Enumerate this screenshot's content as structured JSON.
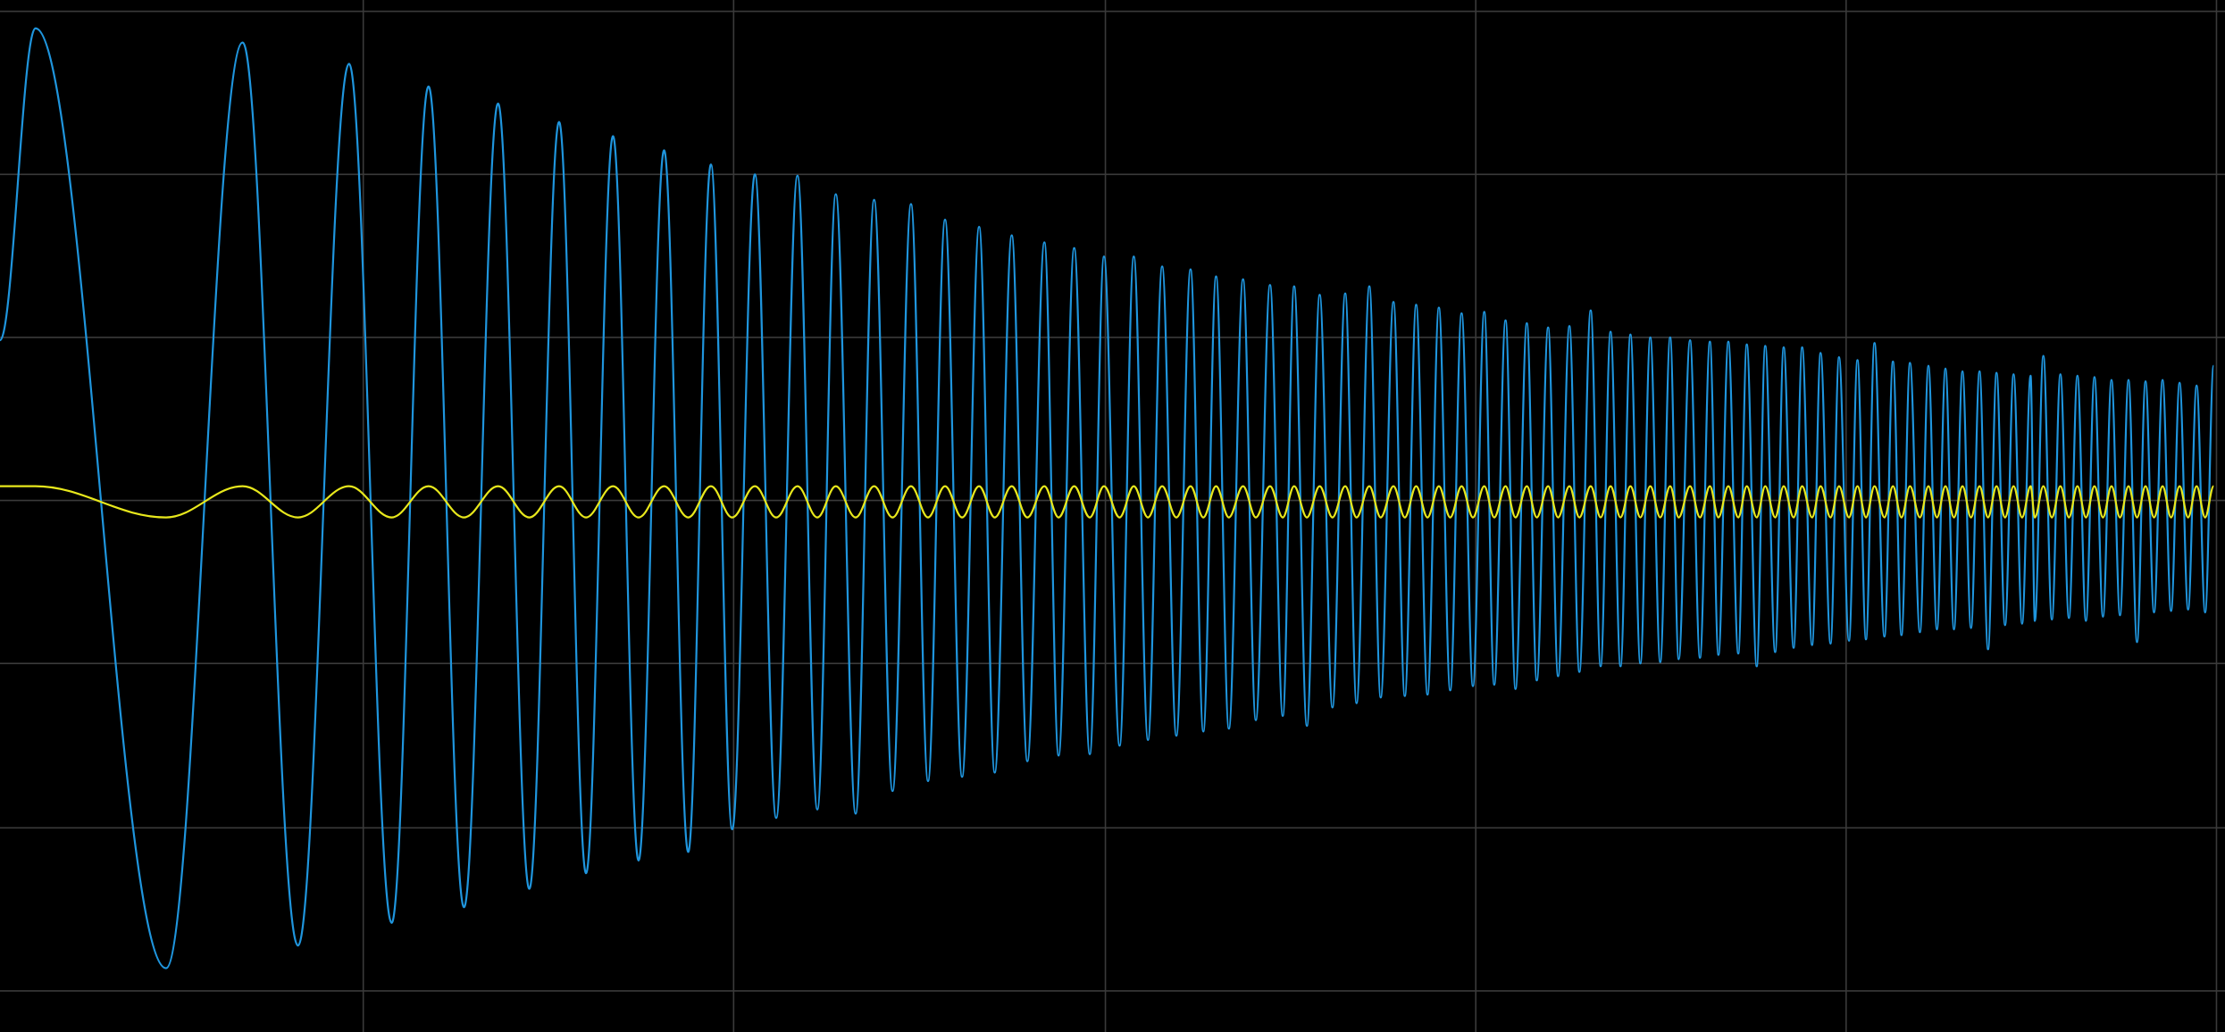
{
  "chart_data": {
    "type": "line",
    "x": [
      0,
      25,
      117,
      171,
      210,
      246,
      276,
      302,
      327,
      351,
      373,
      394,
      413,
      432,
      450,
      468,
      485,
      501,
      516,
      532,
      547,
      562,
      576,
      589,
      603,
      616,
      629,
      642,
      654,
      666,
      678,
      690,
      701,
      713,
      724,
      736,
      746,
      757,
      768,
      778,
      789,
      799,
      809,
      819,
      829,
      839,
      848,
      857,
      866,
      876,
      885,
      895,
      904,
      912,
      921,
      930,
      939,
      948,
      956,
      965,
      973,
      982,
      990,
      998,
      1006,
      1014,
      1022,
      1030,
      1038,
      1046,
      1053,
      1061,
      1068,
      1076,
      1083,
      1091,
      1098,
      1106,
      1113,
      1121,
      1128,
      1135,
      1142,
      1149,
      1156,
      1163,
      1170,
      1177,
      1183,
      1191,
      1198,
      1205,
      1211,
      1218,
      1225,
      1231,
      1238,
      1244,
      1251,
      1257,
      1264,
      1270,
      1277,
      1283,
      1290,
      1296,
      1303,
      1309,
      1315,
      1321,
      1328,
      1334,
      1340,
      1346,
      1353,
      1359,
      1365,
      1371,
      1377,
      1383,
      1389,
      1395,
      1401,
      1407,
      1413,
      1419,
      1425,
      1431,
      1434,
      1440,
      1446,
      1452,
      1458,
      1464,
      1470,
      1476,
      1482,
      1488,
      1494,
      1500,
      1506,
      1512,
      1518,
      1524,
      1530,
      1536,
      1542,
      1548,
      1554,
      1560
    ],
    "series": [
      {
        "color": "#1f95dd",
        "values": [
          113,
          333,
          -330,
          323,
          -314,
          308,
          -298,
          292,
          -287,
          280,
          -274,
          267,
          -263,
          257,
          -254,
          247,
          -248,
          237,
          -232,
          230,
          -224,
          229,
          -218,
          216,
          -221,
          212,
          -205,
          209,
          -198,
          198,
          -195,
          193,
          -192,
          187,
          -184,
          182,
          -180,
          178,
          -179,
          172,
          -173,
          172,
          -169,
          165,
          -166,
          163,
          -163,
          158,
          -161,
          156,
          -155,
          152,
          -152,
          151,
          -159,
          145,
          -146,
          146,
          -143,
          151,
          -139,
          140,
          -138,
          138,
          -137,
          136,
          -134,
          132,
          -131,
          133,
          -130,
          127,
          -133,
          125,
          -127,
          122,
          -124,
          123,
          -121,
          134,
          -117,
          119,
          -117,
          117,
          -115,
          115,
          -114,
          115,
          -112,
          113,
          -111,
          112,
          -109,
          112,
          -108,
          110,
          -117,
          109,
          -107,
          108,
          -104,
          108,
          -102,
          104,
          -101,
          101,
          -99,
          99,
          -98,
          111,
          -96,
          98,
          -95,
          97,
          -93,
          95,
          -91,
          93,
          -91,
          91,
          -90,
          91,
          -105,
          90,
          -88,
          89,
          -87,
          88,
          -85,
          102,
          -84,
          89,
          -83,
          88,
          -85,
          87,
          -82,
          85,
          -81,
          85,
          -100,
          84,
          -79,
          85,
          -78,
          83,
          -77,
          81,
          -79,
          95
        ]
      },
      {
        "color": "#e8e81c",
        "values": [
          10,
          10,
          -12,
          10,
          -12,
          10,
          -12,
          10,
          -12,
          10,
          -12,
          10,
          -12,
          10,
          -12,
          10,
          -12,
          10,
          -12,
          10,
          -12,
          10,
          -12,
          10,
          -12,
          10,
          -12,
          10,
          -12,
          10,
          -12,
          10,
          -12,
          10,
          -12,
          10,
          -12,
          10,
          -12,
          10,
          -12,
          10,
          -12,
          10,
          -12,
          10,
          -12,
          10,
          -12,
          10,
          -12,
          10,
          -12,
          10,
          -12,
          10,
          -12,
          10,
          -12,
          10,
          -12,
          10,
          -12,
          10,
          -12,
          10,
          -12,
          10,
          -12,
          10,
          -12,
          10,
          -12,
          10,
          -12,
          10,
          -12,
          10,
          -12,
          10,
          -12,
          10,
          -12,
          10,
          -12,
          10,
          -12,
          10,
          -12,
          10,
          -12,
          10,
          -12,
          10,
          -12,
          10,
          -12,
          10,
          -12,
          10,
          -12,
          10,
          -12,
          10,
          -12,
          10,
          -12,
          10,
          -12,
          10,
          -12,
          10,
          -12,
          10,
          -12,
          10,
          -12,
          10,
          -12,
          10,
          -12,
          10,
          -12,
          10,
          -12,
          10,
          -12,
          10,
          -12,
          10,
          -12,
          10,
          -12,
          10,
          -12,
          10,
          -12,
          10,
          -12,
          10,
          -12,
          10,
          -12,
          10,
          -12,
          10,
          -12,
          10,
          -12,
          10
        ]
      }
    ],
    "xlim": [
      0,
      1568
    ],
    "xticks": [
      256,
      517,
      779,
      1040,
      1301,
      1562
    ],
    "ylim": [
      -375,
      353
    ],
    "yticks": [
      -346,
      -231,
      -115,
      0,
      115,
      230,
      345
    ],
    "grid": true
  }
}
